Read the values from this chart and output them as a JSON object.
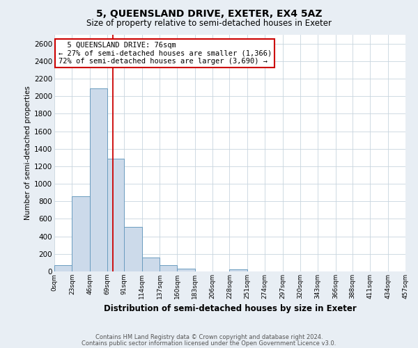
{
  "title": "5, QUEENSLAND DRIVE, EXETER, EX4 5AZ",
  "subtitle": "Size of property relative to semi-detached houses in Exeter",
  "xlabel": "Distribution of semi-detached houses by size in Exeter",
  "ylabel": "Number of semi-detached properties",
  "bar_color": "#ccdaea",
  "bar_edge_color": "#6a9cbf",
  "bin_labels": [
    "0sqm",
    "23sqm",
    "46sqm",
    "69sqm",
    "91sqm",
    "114sqm",
    "137sqm",
    "160sqm",
    "183sqm",
    "206sqm",
    "228sqm",
    "251sqm",
    "274sqm",
    "297sqm",
    "320sqm",
    "343sqm",
    "366sqm",
    "388sqm",
    "411sqm",
    "434sqm",
    "457sqm"
  ],
  "bin_edges": [
    0,
    23,
    46,
    69,
    91,
    114,
    137,
    160,
    183,
    206,
    228,
    251,
    274,
    297,
    320,
    343,
    366,
    388,
    411,
    434,
    457
  ],
  "bar_heights": [
    75,
    855,
    2090,
    1290,
    510,
    160,
    75,
    35,
    0,
    0,
    25,
    0,
    0,
    0,
    0,
    0,
    0,
    0,
    0,
    0
  ],
  "ylim": [
    0,
    2700
  ],
  "yticks": [
    0,
    200,
    400,
    600,
    800,
    1000,
    1200,
    1400,
    1600,
    1800,
    2000,
    2200,
    2400,
    2600
  ],
  "property_size": 76,
  "property_line_color": "#cc0000",
  "annotation_title": "5 QUEENSLAND DRIVE: 76sqm",
  "annotation_line1": "← 27% of semi-detached houses are smaller (1,366)",
  "annotation_line2": "72% of semi-detached houses are larger (3,690) →",
  "annotation_box_color": "#ffffff",
  "annotation_box_edge": "#cc0000",
  "footer_line1": "Contains HM Land Registry data © Crown copyright and database right 2024.",
  "footer_line2": "Contains public sector information licensed under the Open Government Licence v3.0.",
  "background_color": "#e8eef4",
  "plot_bg_color": "#ffffff",
  "grid_color": "#c8d4de"
}
